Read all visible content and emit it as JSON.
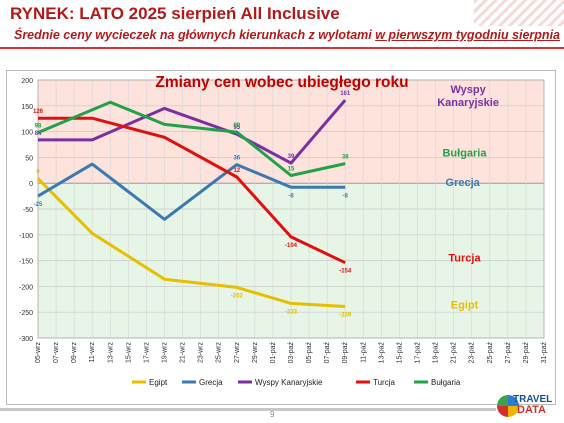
{
  "header": {
    "title": "RYNEK: LATO 2025 sierpień All Inclusive",
    "subtitle_pre": "Średnie ceny wycieczek na głównych kierunkach z wylotami ",
    "subtitle_underlined": "w pierwszym tygodniu sierpnia"
  },
  "footer": {
    "page_number": "9",
    "logo_line1": "TRAVEL",
    "logo_line2": "DATA"
  },
  "colors": {
    "Egipt": "#e6c000",
    "Grecja": "#3d78b0",
    "Wyspy Kanaryjskie": "#7a30a3",
    "Turcja": "#e01010",
    "Bułgaria": "#22a14a",
    "band_positive": "#fde3dc",
    "band_negative": "#e6f5e6",
    "title": "#c00000"
  },
  "chart_data": {
    "type": "line",
    "title": "Zmiany cen wobec ubiegłego roku",
    "ylim": [
      -300,
      200
    ],
    "yticks": [
      200,
      150,
      100,
      50,
      0,
      -50,
      -100,
      -150,
      -200,
      -250,
      -300
    ],
    "categories": [
      "05-wrz",
      "07-wrz",
      "09-wrz",
      "11-wrz",
      "13-wrz",
      "15-wrz",
      "17-wrz",
      "19-wrz",
      "21-wrz",
      "23-wrz",
      "25-wrz",
      "27-wrz",
      "29-wrz",
      "01-paź",
      "03-paź",
      "05-paź",
      "07-paź",
      "09-paź",
      "11-paź",
      "13-paź",
      "15-paź",
      "17-paź",
      "19-paź",
      "21-paź",
      "23-paź",
      "25-paź",
      "27-paź",
      "29-paź",
      "31-paź"
    ],
    "grid": true,
    "legend_position": "bottom",
    "series": [
      {
        "name": "Egipt",
        "color": "#e6c000",
        "label": "Egipt",
        "label_x": 23.6,
        "label_y": -243,
        "points": [
          [
            0,
            9
          ],
          [
            3,
            -97
          ],
          [
            7,
            -186
          ],
          [
            11,
            -202
          ],
          [
            14,
            -233
          ],
          [
            17,
            -239
          ]
        ],
        "data_labels": [
          [
            "9",
            0,
            9
          ],
          [
            "-202",
            11,
            -202
          ],
          [
            "-233",
            14,
            -233
          ],
          [
            "-239",
            17,
            -239
          ]
        ]
      },
      {
        "name": "Grecja",
        "color": "#3d78b0",
        "label": "Grecja",
        "label_x": 23.5,
        "label_y": -5,
        "points": [
          [
            0,
            -25
          ],
          [
            3,
            37
          ],
          [
            7,
            -70
          ],
          [
            11,
            36
          ],
          [
            14,
            -8
          ],
          [
            17,
            -8
          ]
        ],
        "data_labels": [
          [
            "-25",
            0,
            -25
          ],
          [
            "36",
            11,
            36
          ],
          [
            "-8",
            14,
            -8
          ],
          [
            "-8",
            17,
            -8
          ]
        ]
      },
      {
        "name": "Wyspy Kanaryjskie",
        "color": "#7a30a3",
        "label": "Wyspy\nKanaryjskie",
        "label_x": 23.8,
        "label_y": 175,
        "points": [
          [
            0,
            84
          ],
          [
            3,
            84
          ],
          [
            7,
            145
          ],
          [
            11,
            95
          ],
          [
            14,
            39
          ],
          [
            17,
            161
          ]
        ],
        "data_labels": [
          [
            "84",
            0,
            84
          ],
          [
            "95",
            11,
            95
          ],
          [
            "39",
            14,
            39
          ],
          [
            "161",
            17,
            161
          ]
        ]
      },
      {
        "name": "Turcja",
        "color": "#e01010",
        "label": "Turcja",
        "label_x": 23.6,
        "label_y": -152,
        "points": [
          [
            0,
            126
          ],
          [
            3,
            126
          ],
          [
            7,
            89
          ],
          [
            11,
            12
          ],
          [
            14,
            -104
          ],
          [
            17,
            -154
          ]
        ],
        "data_labels": [
          [
            "126",
            0,
            126
          ],
          [
            "12",
            11,
            12
          ],
          [
            "-104",
            14,
            -104
          ],
          [
            "-154",
            17,
            -154
          ]
        ]
      },
      {
        "name": "Bułgaria",
        "color": "#22a14a",
        "label": "Bułgaria",
        "label_x": 23.6,
        "label_y": 52,
        "points": [
          [
            0,
            98
          ],
          [
            4,
            157
          ],
          [
            7,
            114
          ],
          [
            11,
            99
          ],
          [
            14,
            15
          ],
          [
            17,
            38
          ]
        ],
        "data_labels": [
          [
            "98",
            0,
            98
          ],
          [
            "99",
            11,
            99
          ],
          [
            "15",
            14,
            15
          ],
          [
            "38",
            17,
            38
          ]
        ]
      }
    ]
  }
}
